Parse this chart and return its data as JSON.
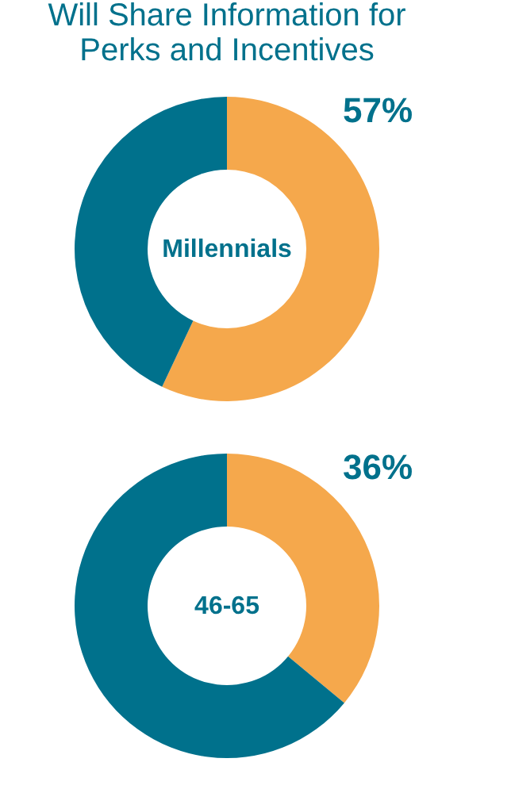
{
  "chart_data": [
    {
      "type": "donut",
      "title": "Will Share Information for Perks and Incentives",
      "annotations": [
        "Millennials"
      ],
      "categories": [
        null,
        null
      ],
      "values": [
        57,
        43
      ],
      "colors": [
        "#f5a84c",
        "#00718c"
      ],
      "value_labels": [
        "57%",
        null
      ]
    },
    {
      "type": "donut",
      "annotations": [
        "46-65"
      ],
      "categories": [
        null,
        null
      ],
      "values": [
        36,
        64
      ],
      "colors": [
        "#f5a84c",
        "#00718c"
      ],
      "value_labels": [
        "36%",
        null
      ]
    }
  ]
}
